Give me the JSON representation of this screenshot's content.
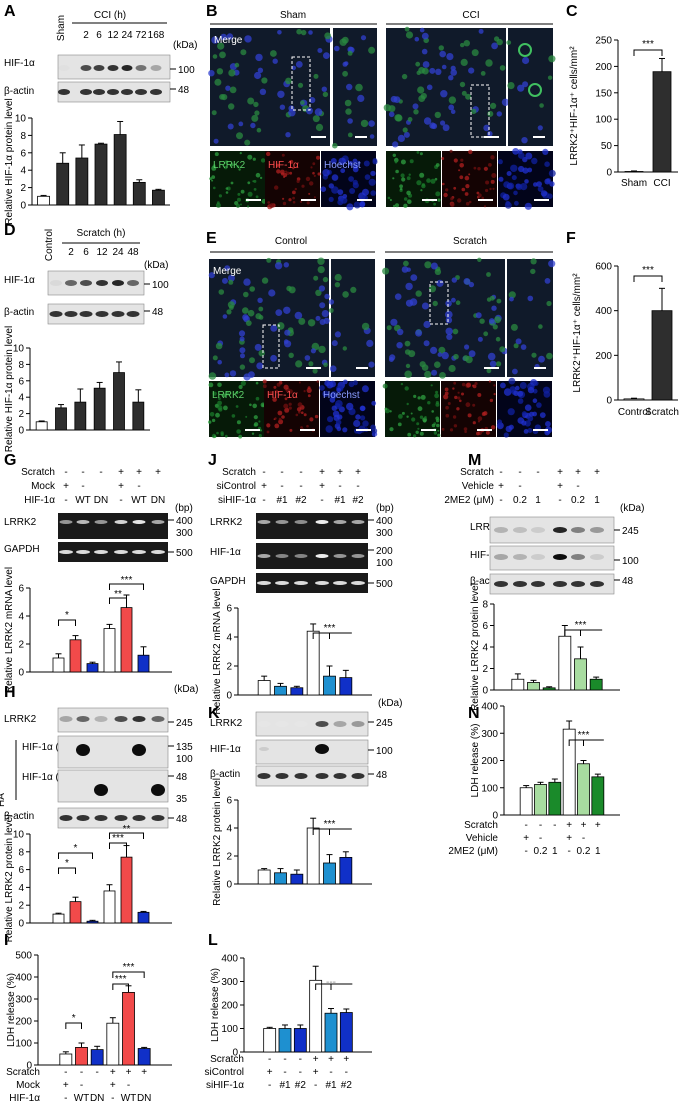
{
  "panels": {
    "A": {
      "letter": "A",
      "groups": [
        "Sham",
        "CCI (h)"
      ],
      "lanes": [
        "2",
        "6",
        "12",
        "24",
        "72",
        "168"
      ],
      "kda_label": "(kDa)",
      "blot_rows": [
        "HIF-1α",
        "β-actin"
      ],
      "markers": [
        "100",
        "48"
      ],
      "ylabel": "Relative HIF-1α protein level"
    },
    "B": {
      "letter": "B",
      "groups": [
        "Sham",
        "CCI"
      ],
      "merge_label": "Merge",
      "channels": [
        "LRRK2",
        "HIF-1α",
        "Hoechst"
      ]
    },
    "C": {
      "letter": "C",
      "ylabel": "LRRK2⁺HIF-1α⁺ cells/mm²",
      "sig": "***"
    },
    "D": {
      "letter": "D",
      "groups": [
        "Control",
        "Scratch (h)"
      ],
      "lanes": [
        "2",
        "6",
        "12",
        "24",
        "48"
      ],
      "kda_label": "(kDa)",
      "blot_rows": [
        "HIF-1α",
        "β-actin"
      ],
      "markers": [
        "100",
        "48"
      ],
      "ylabel": "Relative HIF-1α protein level"
    },
    "E": {
      "letter": "E",
      "groups": [
        "Control",
        "Scratch"
      ],
      "merge_label": "Merge",
      "channels": [
        "LRRK2",
        "HIF-1α",
        "Hoechst"
      ]
    },
    "F": {
      "letter": "F",
      "ylabel": "LRRK2⁺HIF-1α⁺ cells/mm²",
      "sig": "***"
    },
    "G": {
      "letter": "G",
      "cond_rows": [
        {
          "label": "Scratch",
          "vals": [
            "-",
            "-",
            "-",
            "+",
            "+",
            "+"
          ]
        },
        {
          "label": "Mock",
          "vals": [
            "+",
            "-",
            "",
            "+",
            "-",
            ""
          ]
        },
        {
          "label": "HIF-1α",
          "vals": [
            "-",
            "WT",
            "DN",
            "-",
            "WT",
            "DN"
          ]
        }
      ],
      "size_label": "(bp)",
      "blot_rows": [
        "LRRK2",
        "GAPDH"
      ],
      "markers": [
        "400",
        "300",
        "500"
      ],
      "ylabel": "Relative LRRK2 mRNA level",
      "sigs": [
        "*",
        "**",
        "***"
      ]
    },
    "H": {
      "letter": "H",
      "kda_label": "(kDa)",
      "ha_label": "HA",
      "blot_rows": [
        "LRRK2",
        "HIF-1α (WT)",
        "HIF-1α (DN)",
        "β-actin"
      ],
      "markers": [
        "245",
        "135",
        "100",
        "48",
        "35",
        "48"
      ],
      "ylabel": "Relative LRRK2 protein level",
      "sigs": [
        "*",
        "*",
        "***",
        "**"
      ]
    },
    "I": {
      "letter": "I",
      "ylabel": "LDH release (%)",
      "sigs": [
        "*",
        "***",
        "***"
      ],
      "cond_rows": [
        {
          "label": "Scratch",
          "vals": [
            "-",
            "-",
            "-",
            "+",
            "+",
            "+"
          ]
        },
        {
          "label": "Mock",
          "vals": [
            "+",
            "-",
            "",
            "+",
            "-",
            ""
          ]
        },
        {
          "label": "HIF-1α",
          "vals": [
            "-",
            "WT",
            "DN",
            "-",
            "WT",
            "DN"
          ]
        }
      ]
    },
    "J": {
      "letter": "J",
      "cond_rows": [
        {
          "label": "Scratch",
          "vals": [
            "-",
            "-",
            "-",
            "+",
            "+",
            "+"
          ]
        },
        {
          "label": "siControl",
          "vals": [
            "+",
            "-",
            "-",
            "+",
            "-",
            "-"
          ]
        },
        {
          "label": "siHIF-1α",
          "vals": [
            "-",
            "#1",
            "#2",
            "-",
            "#1",
            "#2"
          ]
        }
      ],
      "size_label": "(bp)",
      "blot_rows": [
        "LRRK2",
        "HIF-1α",
        "GAPDH"
      ],
      "markers": [
        "400",
        "300",
        "200",
        "100",
        "500"
      ],
      "ylabel": "Relative LRRK2 mRNA level",
      "sig": "***"
    },
    "K": {
      "letter": "K",
      "kda_label": "(kDa)",
      "blot_rows": [
        "LRRK2",
        "HIF-1α",
        "β-actin"
      ],
      "markers": [
        "245",
        "100",
        "48"
      ],
      "ylabel": "Relative LRRK2 protein level",
      "sig": "***"
    },
    "L": {
      "letter": "L",
      "ylabel": "LDH release (%)",
      "sig": "***",
      "cond_rows": [
        {
          "label": "Scratch",
          "vals": [
            "-",
            "-",
            "-",
            "+",
            "+",
            "+"
          ]
        },
        {
          "label": "siControl",
          "vals": [
            "+",
            "-",
            "-",
            "+",
            "-",
            "-"
          ]
        },
        {
          "label": "siHIF-1α",
          "vals": [
            "-",
            "#1",
            "#2",
            "-",
            "#1",
            "#2"
          ]
        }
      ]
    },
    "M": {
      "letter": "M",
      "cond_rows": [
        {
          "label": "Scratch",
          "vals": [
            "-",
            "-",
            "-",
            "+",
            "+",
            "+"
          ]
        },
        {
          "label": "Vehicle",
          "vals": [
            "+",
            "-",
            "",
            "+",
            "-",
            ""
          ]
        },
        {
          "label": "2ME2 (μM)",
          "vals": [
            "-",
            "0.2",
            "1",
            "-",
            "0.2",
            "1"
          ]
        }
      ],
      "kda_label": "(kDa)",
      "blot_rows": [
        "LRRK2",
        "HIF-1α",
        "β-actin"
      ],
      "markers": [
        "245",
        "100",
        "48"
      ],
      "ylabel": "Relative LRRK2 protein level",
      "sig": "***"
    },
    "N": {
      "letter": "N",
      "ylabel": "LDH release (%)",
      "sig": "***",
      "cond_rows": [
        {
          "label": "Scratch",
          "vals": [
            "-",
            "-",
            "-",
            "+",
            "+",
            "+"
          ]
        },
        {
          "label": "Vehicle",
          "vals": [
            "+",
            "-",
            "",
            "+",
            "-",
            ""
          ]
        },
        {
          "label": "2ME2 (μM)",
          "vals": [
            "-",
            "0.2",
            "1",
            "-",
            "0.2",
            "1"
          ]
        }
      ]
    }
  },
  "colors": {
    "dark_bar": "#2e2e2e",
    "red": "#f24a4a",
    "dark_blue": "#1030c8",
    "light_blue": "#1e90d0",
    "light_green": "#a8dca0",
    "dark_green": "#1a8a2a",
    "fluor_green": "#1a7a2a",
    "fluor_red": "#8a1010",
    "fluor_blue": "#1018a0"
  },
  "chart_data": [
    {
      "panel": "A",
      "type": "bar",
      "categories": [
        "Sham",
        "2",
        "6",
        "12",
        "24",
        "72",
        "168"
      ],
      "values": [
        1.0,
        4.8,
        5.4,
        7.0,
        8.1,
        2.6,
        1.7
      ],
      "errors": [
        0.1,
        1.2,
        1.5,
        0.1,
        1.5,
        0.3,
        0.1
      ],
      "ylim": [
        0,
        10
      ],
      "yticks": [
        0,
        2,
        4,
        6,
        8,
        10
      ],
      "ylabel": "Relative HIF-1α protein level"
    },
    {
      "panel": "C",
      "type": "bar",
      "categories": [
        "Sham",
        "CCI"
      ],
      "values": [
        1,
        190
      ],
      "errors": [
        1,
        25
      ],
      "ylim": [
        0,
        250
      ],
      "yticks": [
        0,
        50,
        100,
        150,
        200,
        250
      ],
      "ylabel": "LRRK2⁺HIF-1α⁺ cells/mm²"
    },
    {
      "panel": "D",
      "type": "bar",
      "categories": [
        "Control",
        "2",
        "6",
        "12",
        "24",
        "48"
      ],
      "values": [
        1.0,
        2.7,
        3.4,
        5.1,
        7.0,
        3.4
      ],
      "errors": [
        0.1,
        0.4,
        1.6,
        0.7,
        1.3,
        1.5
      ],
      "ylim": [
        0,
        10
      ],
      "yticks": [
        0,
        2,
        4,
        6,
        8,
        10
      ],
      "ylabel": "Relative HIF-1α protein level"
    },
    {
      "panel": "F",
      "type": "bar",
      "categories": [
        "Control",
        "Scratch"
      ],
      "values": [
        5,
        400
      ],
      "errors": [
        3,
        100
      ],
      "ylim": [
        0,
        600
      ],
      "yticks": [
        0,
        200,
        400,
        600
      ],
      "ylabel": "LRRK2⁺HIF-1α⁺ cells/mm²"
    },
    {
      "panel": "G",
      "type": "bar",
      "values": [
        1.0,
        2.3,
        0.6,
        3.1,
        4.6,
        1.2
      ],
      "errors": [
        0.3,
        0.3,
        0.1,
        0.3,
        0.9,
        0.6
      ],
      "ylim": [
        0,
        6
      ],
      "yticks": [
        0,
        2,
        4,
        6
      ],
      "ylabel": "Relative LRRK2 mRNA level"
    },
    {
      "panel": "H",
      "type": "bar",
      "values": [
        1.0,
        2.4,
        0.2,
        3.6,
        7.4,
        1.2
      ],
      "errors": [
        0.1,
        0.5,
        0.1,
        0.7,
        1.3,
        0.1
      ],
      "ylim": [
        0,
        10
      ],
      "yticks": [
        0,
        2,
        4,
        6,
        8,
        10
      ],
      "ylabel": "Relative LRRK2 protein level"
    },
    {
      "panel": "I",
      "type": "bar",
      "values": [
        50,
        80,
        70,
        190,
        330,
        75
      ],
      "errors": [
        10,
        20,
        15,
        25,
        30,
        5
      ],
      "ylim": [
        0,
        500
      ],
      "yticks": [
        0,
        100,
        200,
        300,
        400,
        500
      ],
      "ylabel": "LDH release (%)"
    },
    {
      "panel": "J",
      "type": "bar",
      "values": [
        1.0,
        0.6,
        0.5,
        4.4,
        1.3,
        1.2
      ],
      "errors": [
        0.3,
        0.2,
        0.1,
        0.5,
        0.7,
        0.5
      ],
      "ylim": [
        0,
        6
      ],
      "yticks": [
        0,
        2,
        4,
        6
      ],
      "ylabel": "Relative LRRK2 mRNA level"
    },
    {
      "panel": "K",
      "type": "bar",
      "values": [
        1.0,
        0.8,
        0.7,
        4.0,
        1.5,
        1.9
      ],
      "errors": [
        0.1,
        0.3,
        0.3,
        0.7,
        0.6,
        0.4
      ],
      "ylim": [
        0,
        6
      ],
      "yticks": [
        0,
        2,
        4,
        6
      ],
      "ylabel": "Relative LRRK2 protein level"
    },
    {
      "panel": "L",
      "type": "bar",
      "values": [
        100,
        100,
        100,
        305,
        165,
        168
      ],
      "errors": [
        5,
        15,
        15,
        60,
        20,
        15
      ],
      "ylim": [
        0,
        400
      ],
      "yticks": [
        0,
        100,
        200,
        300,
        400
      ],
      "ylabel": "LDH release (%)"
    },
    {
      "panel": "M",
      "type": "bar",
      "values": [
        1.0,
        0.7,
        0.2,
        5.0,
        2.9,
        1.0
      ],
      "errors": [
        0.5,
        0.2,
        0.1,
        1.0,
        1.1,
        0.2
      ],
      "ylim": [
        0,
        8
      ],
      "yticks": [
        0,
        2,
        4,
        6,
        8
      ],
      "ylabel": "Relative LRRK2 protein level"
    },
    {
      "panel": "N",
      "type": "bar",
      "values": [
        100,
        112,
        120,
        315,
        188,
        140
      ],
      "errors": [
        8,
        8,
        12,
        30,
        12,
        10
      ],
      "ylim": [
        0,
        400
      ],
      "yticks": [
        0,
        100,
        200,
        300,
        400
      ],
      "ylabel": "LDH release (%)"
    }
  ]
}
